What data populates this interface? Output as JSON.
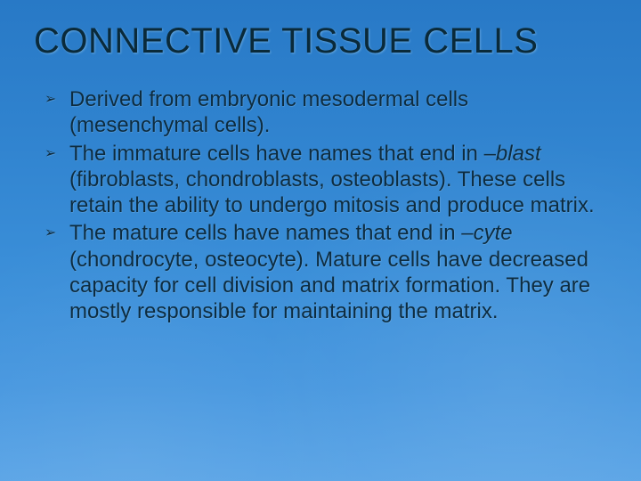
{
  "slide": {
    "background_gradient": [
      "#2879c6",
      "#5aa4e6"
    ],
    "title_color": "#0a2a3a",
    "text_color": "#0d2c40",
    "title": "CONNECTIVE TISSUE CELLS",
    "title_fontsize": 40,
    "body_fontsize": 24,
    "bullet_marker": "➢",
    "bullets": [
      {
        "pre": "Derived from embryonic mesodermal cells (mesenchymal cells)."
      },
      {
        "pre": "The immature cells have names that end in –",
        "em": "blast",
        "post": " (fibroblasts, chondroblasts, osteoblasts).  These cells retain the ability to undergo mitosis and produce matrix."
      },
      {
        "pre": "The mature cells have names that end in –",
        "em": "cyte",
        "post": " (chondrocyte, osteocyte).  Mature cells have decreased capacity for cell division and matrix formation.  They are mostly responsible for maintaining the matrix."
      }
    ]
  }
}
